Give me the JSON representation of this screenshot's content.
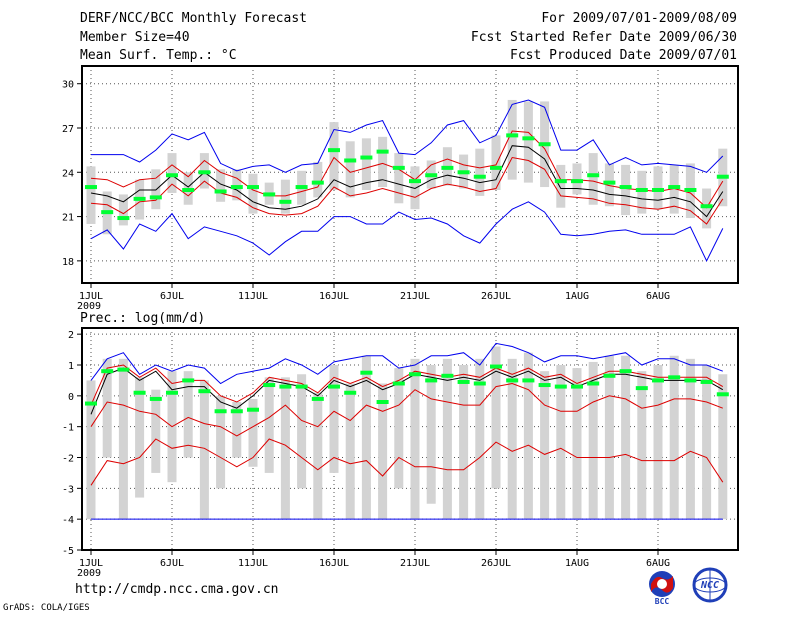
{
  "header": {
    "title": "DERF/NCC/BCC Monthly Forecast",
    "member_size": "Member Size=40",
    "variable": "Mean Surf. Temp.: °C",
    "period": "For 2009/07/01-2009/08/09",
    "started": "Fcst Started Refer Date 2009/06/30",
    "produced": "Fcst Produced Date 2009/07/01"
  },
  "footer": {
    "url": "http://cmdp.ncc.cma.gov.cn",
    "grads": "GrADS: COLA/IGES"
  },
  "logos": {
    "left_text": "BCC",
    "right_text": "NCC"
  },
  "colors": {
    "box": "#d3d3d3",
    "mean": "#00ff33",
    "median": "#000000",
    "quartile": "#dd0000",
    "extreme": "#0000ee",
    "dots": "#555555"
  },
  "chart_data": [
    {
      "type": "box-whisker",
      "panel": "top",
      "title": "",
      "ylabel": "Mean Surf. Temp.: °C",
      "ylim": [
        16.5,
        31.2
      ],
      "yticks": [
        18,
        21,
        24,
        27,
        30
      ],
      "xlim": [
        0,
        40
      ],
      "xticks": [
        {
          "x": 1,
          "label": "1JUL",
          "sub": "2009"
        },
        {
          "x": 6,
          "label": "6JUL"
        },
        {
          "x": 11,
          "label": "11JUL"
        },
        {
          "x": 16,
          "label": "16JUL"
        },
        {
          "x": 21,
          "label": "21JUL"
        },
        {
          "x": 26,
          "label": "26JUL"
        },
        {
          "x": 31,
          "label": "1AUG"
        },
        {
          "x": 36,
          "label": "6AUG"
        }
      ],
      "days": [
        1,
        2,
        3,
        4,
        5,
        6,
        7,
        8,
        9,
        10,
        11,
        12,
        13,
        14,
        15,
        16,
        17,
        18,
        19,
        20,
        21,
        22,
        23,
        24,
        25,
        26,
        27,
        28,
        29,
        30,
        31,
        32,
        33,
        34,
        35,
        36,
        37,
        38,
        39,
        40
      ],
      "mean": [
        23.0,
        21.3,
        20.9,
        22.2,
        22.3,
        23.8,
        22.8,
        24.0,
        22.7,
        23.0,
        23.0,
        22.5,
        22.0,
        23.0,
        23.3,
        25.5,
        24.8,
        25.0,
        25.4,
        24.3,
        23.4,
        23.8,
        24.3,
        24.0,
        23.7,
        24.3,
        26.5,
        26.3,
        25.9,
        23.4,
        23.4,
        23.8,
        23.3,
        23.0,
        22.8,
        22.8,
        23.0,
        22.8,
        21.7,
        23.7
      ],
      "p25": [
        20.5,
        19.8,
        20.4,
        20.8,
        21.5,
        22.6,
        21.8,
        22.9,
        22.0,
        22.1,
        21.2,
        21.8,
        21.2,
        21.8,
        22.3,
        22.8,
        22.3,
        22.8,
        23.0,
        21.9,
        21.5,
        22.9,
        23.1,
        22.9,
        22.4,
        22.8,
        23.5,
        23.3,
        23.0,
        21.6,
        22.5,
        21.8,
        21.7,
        21.1,
        21.2,
        21.5,
        21.2,
        20.9,
        20.2,
        21.7
      ],
      "p75": [
        24.4,
        22.7,
        22.5,
        23.5,
        24.2,
        25.3,
        24.0,
        25.3,
        24.2,
        24.2,
        23.9,
        23.3,
        23.5,
        24.1,
        24.7,
        27.4,
        26.1,
        26.3,
        26.4,
        25.3,
        24.4,
        24.8,
        25.7,
        25.2,
        25.6,
        26.5,
        28.9,
        28.8,
        28.8,
        24.5,
        24.6,
        25.3,
        24.6,
        24.5,
        24.1,
        24.4,
        24.5,
        24.6,
        22.9,
        25.6
      ],
      "median": [
        22.6,
        22.4,
        22.0,
        22.8,
        22.8,
        23.8,
        23.0,
        24.0,
        23.2,
        22.8,
        22.0,
        21.6,
        21.5,
        21.7,
        22.2,
        23.5,
        23.0,
        23.3,
        23.5,
        23.2,
        22.9,
        23.5,
        23.8,
        23.6,
        23.3,
        23.5,
        25.8,
        25.7,
        24.9,
        22.9,
        22.9,
        22.8,
        22.5,
        22.4,
        22.2,
        22.1,
        22.3,
        22.0,
        21.0,
        22.7
      ],
      "q25_line": [
        21.9,
        21.8,
        21.2,
        22.0,
        22.1,
        23.2,
        22.4,
        23.4,
        22.6,
        22.3,
        21.6,
        21.2,
        21.1,
        21.2,
        21.7,
        23.0,
        22.4,
        22.6,
        22.9,
        22.6,
        22.3,
        22.9,
        23.2,
        23.0,
        22.7,
        22.9,
        25.0,
        24.8,
        24.2,
        22.4,
        22.3,
        22.2,
        21.9,
        21.8,
        21.6,
        21.5,
        21.7,
        21.4,
        20.5,
        22.2
      ],
      "q75_line": [
        23.6,
        23.5,
        23.0,
        23.5,
        23.6,
        24.5,
        23.7,
        24.8,
        24.0,
        23.6,
        22.8,
        22.4,
        22.4,
        22.7,
        23.0,
        25.0,
        24.0,
        24.3,
        24.6,
        24.2,
        23.5,
        24.5,
        24.9,
        24.5,
        24.3,
        24.5,
        26.8,
        26.7,
        25.6,
        23.5,
        23.5,
        23.4,
        23.1,
        22.9,
        22.8,
        22.7,
        22.9,
        22.6,
        21.6,
        23.4
      ],
      "min": [
        19.5,
        20.1,
        18.8,
        20.5,
        20.0,
        21.2,
        19.5,
        20.3,
        20.0,
        19.7,
        19.2,
        18.4,
        19.3,
        20.0,
        20.0,
        21.0,
        21.0,
        20.5,
        20.5,
        21.3,
        20.8,
        20.9,
        20.5,
        19.7,
        19.2,
        20.5,
        21.5,
        22.0,
        21.3,
        19.8,
        19.7,
        19.8,
        20.0,
        20.1,
        19.8,
        19.8,
        19.8,
        20.3,
        18.0,
        20.2
      ],
      "max": [
        25.2,
        25.2,
        25.2,
        24.7,
        25.5,
        26.6,
        26.2,
        26.7,
        24.6,
        24.1,
        24.4,
        24.5,
        24.0,
        24.5,
        24.6,
        26.9,
        26.7,
        27.2,
        27.5,
        25.3,
        25.2,
        26.0,
        27.2,
        27.5,
        26.0,
        26.5,
        28.6,
        28.9,
        28.4,
        25.5,
        25.5,
        26.2,
        24.5,
        25.0,
        24.5,
        24.6,
        24.5,
        24.4,
        24.0,
        25.1
      ]
    },
    {
      "type": "box-whisker",
      "panel": "bottom",
      "title": "Prec.: log(mm/d)",
      "ylabel": "Prec.: log(mm/d)",
      "ylim": [
        -5,
        2.2
      ],
      "yticks": [
        -5,
        -4,
        -3,
        -2,
        -1,
        0,
        1,
        2
      ],
      "xlim": [
        0,
        40
      ],
      "xticks": [
        {
          "x": 1,
          "label": "1JUL",
          "sub": "2009"
        },
        {
          "x": 6,
          "label": "6JUL"
        },
        {
          "x": 11,
          "label": "11JUL"
        },
        {
          "x": 16,
          "label": "16JUL"
        },
        {
          "x": 21,
          "label": "21JUL"
        },
        {
          "x": 26,
          "label": "26JUL"
        },
        {
          "x": 31,
          "label": "1AUG"
        },
        {
          "x": 36,
          "label": "6AUG"
        }
      ],
      "days": [
        1,
        2,
        3,
        4,
        5,
        6,
        7,
        8,
        9,
        10,
        11,
        12,
        13,
        14,
        15,
        16,
        17,
        18,
        19,
        20,
        21,
        22,
        23,
        24,
        25,
        26,
        27,
        28,
        29,
        30,
        31,
        32,
        33,
        34,
        35,
        36,
        37,
        38,
        39,
        40
      ],
      "mean": [
        -0.25,
        0.8,
        0.85,
        0.1,
        -0.1,
        0.1,
        0.5,
        0.15,
        -0.5,
        -0.5,
        -0.45,
        0.35,
        0.3,
        0.3,
        -0.1,
        0.3,
        0.1,
        0.75,
        -0.2,
        0.4,
        0.7,
        0.5,
        0.65,
        0.45,
        0.4,
        0.95,
        0.5,
        0.5,
        0.35,
        0.3,
        0.3,
        0.4,
        0.65,
        0.8,
        0.25,
        0.5,
        0.6,
        0.5,
        0.45,
        0.05
      ],
      "p25": [
        -4.0,
        -2.0,
        -4.0,
        -3.3,
        -2.5,
        -2.8,
        -2.0,
        -4.0,
        -3.0,
        -2.0,
        -2.3,
        -2.5,
        -4.0,
        -3.0,
        -4.0,
        -2.5,
        -4.0,
        -4.0,
        -4.0,
        -3.0,
        -4.0,
        -3.5,
        -4.0,
        -4.0,
        -4.0,
        -3.0,
        -4.0,
        -4.0,
        -4.0,
        -4.0,
        -4.0,
        -4.0,
        -4.0,
        -4.0,
        -4.0,
        -4.0,
        -4.0,
        -4.0,
        -4.0,
        -4.0
      ],
      "p75": [
        0.5,
        1.2,
        1.2,
        0.6,
        0.2,
        0.8,
        0.8,
        0.5,
        0.0,
        -0.2,
        -0.1,
        0.6,
        0.6,
        0.7,
        0.1,
        1.0,
        0.4,
        1.3,
        0.4,
        0.9,
        1.2,
        1.0,
        1.2,
        1.0,
        1.2,
        1.6,
        1.2,
        1.4,
        0.8,
        1.0,
        0.9,
        1.1,
        1.3,
        1.3,
        0.8,
        1.0,
        1.3,
        1.2,
        1.0,
        0.7
      ],
      "median": [
        -0.6,
        0.7,
        0.9,
        0.5,
        0.8,
        0.2,
        0.3,
        0.3,
        -0.2,
        -0.4,
        0.0,
        0.5,
        0.4,
        0.3,
        0.0,
        0.5,
        0.3,
        0.5,
        0.2,
        0.4,
        0.7,
        0.6,
        0.5,
        0.6,
        0.5,
        0.8,
        0.6,
        0.8,
        0.5,
        0.6,
        0.3,
        0.5,
        0.7,
        0.7,
        0.6,
        0.5,
        0.5,
        0.5,
        0.5,
        0.2
      ],
      "q75_line": [
        -0.3,
        0.9,
        1.0,
        0.6,
        0.9,
        0.4,
        0.5,
        0.5,
        0.0,
        -0.2,
        0.1,
        0.6,
        0.5,
        0.4,
        0.1,
        0.6,
        0.4,
        0.6,
        0.3,
        0.5,
        0.8,
        0.7,
        0.6,
        0.7,
        0.6,
        0.9,
        0.7,
        0.9,
        0.6,
        0.7,
        0.4,
        0.6,
        0.8,
        0.8,
        0.7,
        0.6,
        0.6,
        0.6,
        0.6,
        0.3
      ],
      "q25_line": [
        -1.0,
        -0.2,
        -0.3,
        -0.5,
        -0.6,
        -1.0,
        -0.7,
        -0.9,
        -1.0,
        -1.3,
        -1.0,
        -0.7,
        -0.3,
        -0.8,
        -1.0,
        -0.5,
        -0.8,
        -0.3,
        -0.5,
        -0.3,
        0.2,
        -0.1,
        -0.2,
        -0.3,
        -0.3,
        0.3,
        0.4,
        0.2,
        -0.3,
        -0.5,
        -0.5,
        -0.2,
        0.0,
        -0.1,
        -0.4,
        -0.3,
        -0.1,
        -0.1,
        -0.2,
        -0.4
      ],
      "p10_line": [
        -2.9,
        -2.1,
        -2.2,
        -2.0,
        -1.4,
        -1.7,
        -1.6,
        -1.7,
        -2.0,
        -2.3,
        -2.0,
        -1.4,
        -1.6,
        -2.0,
        -2.4,
        -2.0,
        -2.2,
        -2.1,
        -2.6,
        -2.0,
        -2.3,
        -2.3,
        -2.4,
        -2.4,
        -2.0,
        -1.5,
        -1.8,
        -1.6,
        -1.9,
        -1.7,
        -2.0,
        -2.0,
        -2.0,
        -1.9,
        -2.1,
        -2.1,
        -2.1,
        -1.8,
        -2.0,
        -2.8
      ],
      "max": [
        0.5,
        1.2,
        1.4,
        0.7,
        1.0,
        0.8,
        1.0,
        0.9,
        0.4,
        0.7,
        0.8,
        0.9,
        1.2,
        1.0,
        0.7,
        1.1,
        1.2,
        1.3,
        1.3,
        0.9,
        1.0,
        1.3,
        1.3,
        1.4,
        1.0,
        1.7,
        1.6,
        1.4,
        1.1,
        1.3,
        1.3,
        1.2,
        1.3,
        1.4,
        1.0,
        1.2,
        1.2,
        1.0,
        1.0,
        0.8
      ],
      "min": [
        -4.0,
        -4.0,
        -4.0,
        -4.0,
        -4.0,
        -4.0,
        -4.0,
        -4.0,
        -4.0,
        -4.0,
        -4.0,
        -4.0,
        -4.0,
        -4.0,
        -4.0,
        -4.0,
        -4.0,
        -4.0,
        -4.0,
        -4.0,
        -4.0,
        -4.0,
        -4.0,
        -4.0,
        -4.0,
        -4.0,
        -4.0,
        -4.0,
        -4.0,
        -4.0,
        -4.0,
        -4.0,
        -4.0,
        -4.0,
        -4.0,
        -4.0,
        -4.0,
        -4.0,
        -4.0,
        -4.0
      ]
    }
  ]
}
